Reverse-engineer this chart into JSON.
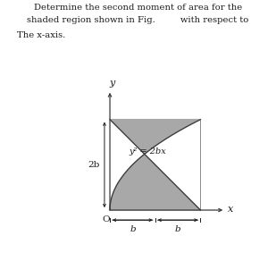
{
  "title_line1": "Determine the second moment of area for the",
  "title_line2": "shaded region shown in Fig.         with respect to",
  "title_line3": "The x-axis.",
  "curve_label": "y² = 2bx",
  "label_2b": "2b",
  "label_b1": "b",
  "label_b2": "b",
  "label_O": "O",
  "label_x": "x",
  "label_y": "y",
  "b_val": 1.0,
  "shade_color": "#a8a8a8",
  "shade_alpha": 1.0,
  "line_color": "#3a3a3a",
  "construction_color": "#777777",
  "background": "#ffffff",
  "text_color": "#1a1a1a"
}
